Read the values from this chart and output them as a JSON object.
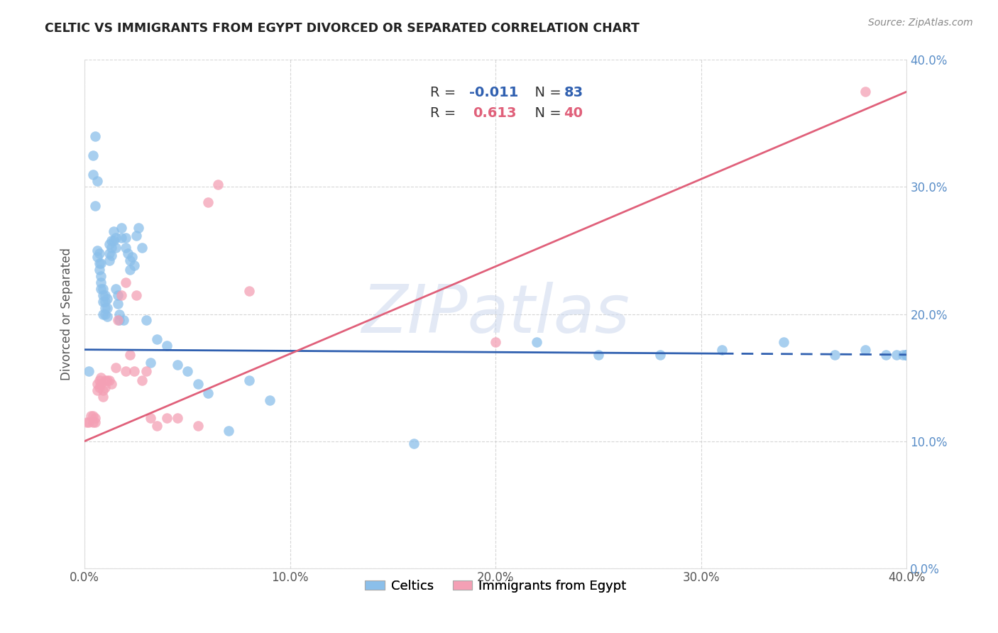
{
  "title": "CELTIC VS IMMIGRANTS FROM EGYPT DIVORCED OR SEPARATED CORRELATION CHART",
  "source": "Source: ZipAtlas.com",
  "ylabel": "Divorced or Separated",
  "xlim": [
    0.0,
    0.4
  ],
  "ylim": [
    0.0,
    0.4
  ],
  "legend_celtics_R": "-0.011",
  "legend_celtics_N": "83",
  "legend_egypt_R": "0.613",
  "legend_egypt_N": "40",
  "celtics_color": "#8bbfea",
  "egypt_color": "#f4a0b5",
  "celtics_line_color": "#3060b0",
  "egypt_line_color": "#e0607a",
  "watermark_text": "ZIPatlas",
  "celtics_line_x0": 0.0,
  "celtics_line_y0": 0.172,
  "celtics_line_x1": 0.4,
  "celtics_line_y1": 0.168,
  "celtics_line_solid_end": 0.31,
  "egypt_line_x0": 0.0,
  "egypt_line_y0": 0.1,
  "egypt_line_x1": 0.4,
  "egypt_line_y1": 0.375,
  "celtics_x": [
    0.002,
    0.004,
    0.004,
    0.005,
    0.005,
    0.006,
    0.006,
    0.006,
    0.007,
    0.007,
    0.007,
    0.008,
    0.008,
    0.008,
    0.008,
    0.009,
    0.009,
    0.009,
    0.009,
    0.01,
    0.01,
    0.01,
    0.01,
    0.011,
    0.011,
    0.011,
    0.012,
    0.012,
    0.012,
    0.013,
    0.013,
    0.013,
    0.014,
    0.014,
    0.015,
    0.015,
    0.015,
    0.016,
    0.016,
    0.017,
    0.017,
    0.018,
    0.018,
    0.019,
    0.02,
    0.02,
    0.021,
    0.022,
    0.022,
    0.023,
    0.024,
    0.025,
    0.026,
    0.028,
    0.03,
    0.032,
    0.035,
    0.04,
    0.045,
    0.05,
    0.055,
    0.06,
    0.07,
    0.08,
    0.09,
    0.16,
    0.22,
    0.25,
    0.28,
    0.31,
    0.34,
    0.365,
    0.38,
    0.39,
    0.395,
    0.398,
    0.4,
    0.4,
    0.4,
    0.4,
    0.4,
    0.4,
    0.4
  ],
  "celtics_y": [
    0.155,
    0.325,
    0.31,
    0.34,
    0.285,
    0.25,
    0.245,
    0.305,
    0.248,
    0.24,
    0.235,
    0.24,
    0.23,
    0.225,
    0.22,
    0.22,
    0.215,
    0.21,
    0.2,
    0.215,
    0.21,
    0.205,
    0.2,
    0.212,
    0.205,
    0.198,
    0.255,
    0.248,
    0.242,
    0.258,
    0.252,
    0.246,
    0.265,
    0.258,
    0.26,
    0.252,
    0.22,
    0.215,
    0.208,
    0.2,
    0.195,
    0.268,
    0.26,
    0.195,
    0.26,
    0.252,
    0.248,
    0.242,
    0.235,
    0.245,
    0.238,
    0.262,
    0.268,
    0.252,
    0.195,
    0.162,
    0.18,
    0.175,
    0.16,
    0.155,
    0.145,
    0.138,
    0.108,
    0.148,
    0.132,
    0.098,
    0.178,
    0.168,
    0.168,
    0.172,
    0.178,
    0.168,
    0.172,
    0.168,
    0.168,
    0.168,
    0.168,
    0.168,
    0.168,
    0.168,
    0.168,
    0.168,
    0.168
  ],
  "egypt_x": [
    0.001,
    0.002,
    0.003,
    0.004,
    0.004,
    0.005,
    0.005,
    0.006,
    0.006,
    0.007,
    0.007,
    0.008,
    0.008,
    0.009,
    0.009,
    0.01,
    0.01,
    0.011,
    0.012,
    0.013,
    0.015,
    0.016,
    0.018,
    0.02,
    0.02,
    0.022,
    0.024,
    0.025,
    0.028,
    0.03,
    0.032,
    0.035,
    0.04,
    0.045,
    0.055,
    0.06,
    0.065,
    0.08,
    0.2,
    0.38
  ],
  "egypt_y": [
    0.115,
    0.115,
    0.12,
    0.115,
    0.12,
    0.115,
    0.118,
    0.145,
    0.14,
    0.148,
    0.142,
    0.15,
    0.145,
    0.14,
    0.135,
    0.148,
    0.142,
    0.148,
    0.148,
    0.145,
    0.158,
    0.195,
    0.215,
    0.155,
    0.225,
    0.168,
    0.155,
    0.215,
    0.148,
    0.155,
    0.118,
    0.112,
    0.118,
    0.118,
    0.112,
    0.288,
    0.302,
    0.218,
    0.178,
    0.375
  ]
}
